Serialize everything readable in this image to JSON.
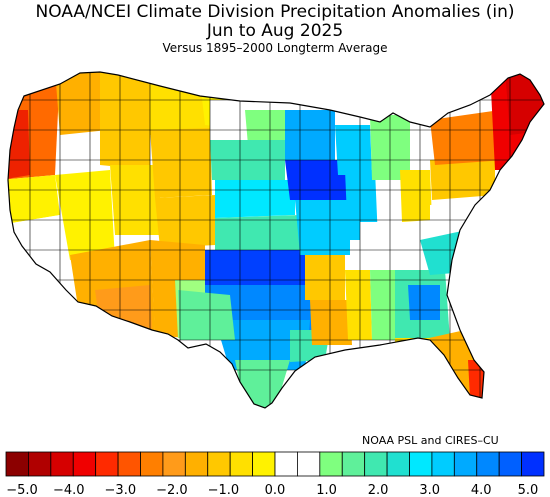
{
  "header": {
    "title": "NOAA/NCEI Climate Division Precipitation Anomalies (in)",
    "period": "Jun to Aug 2025",
    "baseline": "Versus 1895–2000 Longterm Average"
  },
  "credit": "NOAA PSL and CIRES–CU",
  "legend": {
    "unit": "in",
    "min": -5.0,
    "max": 5.0,
    "colors": [
      "#8c0000",
      "#b00000",
      "#d60000",
      "#f00000",
      "#ff2a00",
      "#ff5500",
      "#ff7f00",
      "#ff9b1a",
      "#ffb000",
      "#ffc800",
      "#ffe000",
      "#fff200",
      "#ffffff",
      "#ffffff",
      "#7fff7f",
      "#5ff09a",
      "#40e8b0",
      "#20e0d0",
      "#00e8ff",
      "#00ccff",
      "#00aaff",
      "#0088ff",
      "#0060ff",
      "#0030ff"
    ],
    "ticks": [
      "−5.0",
      "−4.0",
      "−3.0",
      "−2.0",
      "−1.0",
      "0.0",
      "1.0",
      "2.0",
      "3.0",
      "4.0",
      "5.0"
    ]
  },
  "map": {
    "region": "Contiguous United States",
    "regions": [
      {
        "name": "Pacific Northwest coast",
        "anomaly_in": -2.5,
        "color": "#ff6a00"
      },
      {
        "name": "Northern Rockies",
        "anomaly_in": -1.2,
        "color": "#ffe000"
      },
      {
        "name": "California interior",
        "anomaly_in": 0.0,
        "color": "#ffffff"
      },
      {
        "name": "Great Basin",
        "anomaly_in": -1.0,
        "color": "#fff200"
      },
      {
        "name": "Arizona / New Mexico",
        "anomaly_in": -1.8,
        "color": "#ffb000"
      },
      {
        "name": "Northern Plains",
        "anomaly_in": 0.5,
        "color": "#a0ff80"
      },
      {
        "name": "Upper Midwest",
        "anomaly_in": 4.5,
        "color": "#0040ff"
      },
      {
        "name": "Central Plains",
        "anomaly_in": 3.0,
        "color": "#00aaff"
      },
      {
        "name": "Oklahoma",
        "anomaly_in": 5.0,
        "color": "#0030ff"
      },
      {
        "name": "Texas",
        "anomaly_in": 3.5,
        "color": "#0088ff"
      },
      {
        "name": "Gulf Coast",
        "anomaly_in": -1.5,
        "color": "#ffc800"
      },
      {
        "name": "Southeast",
        "anomaly_in": 1.8,
        "color": "#40e8b0"
      },
      {
        "name": "Ohio Valley",
        "anomaly_in": -0.5,
        "color": "#ffffff"
      },
      {
        "name": "Mid-Atlantic",
        "anomaly_in": -1.5,
        "color": "#ffb000"
      },
      {
        "name": "New England",
        "anomaly_in": -4.0,
        "color": "#d60000"
      },
      {
        "name": "Florida",
        "anomaly_in": -2.5,
        "color": "#ff7f00"
      }
    ]
  }
}
